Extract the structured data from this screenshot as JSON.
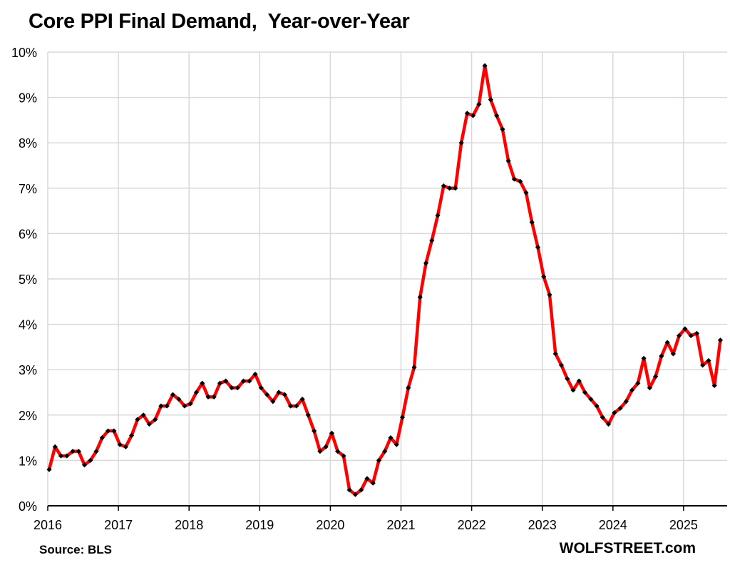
{
  "header": {
    "title": "Core PPI Final Demand,  Year-over-Year"
  },
  "footer": {
    "source": "Source: BLS",
    "brand": "WOLFSTREET.com"
  },
  "colors": {
    "line": "#ff0000",
    "marker": "#000000",
    "grid": "#d9d9d9",
    "axis": "#000000"
  },
  "chart_data": {
    "type": "line",
    "title": "Core PPI Final Demand,  Year-over-Year",
    "xlabel": "",
    "ylabel": "",
    "ylim": [
      0,
      10
    ],
    "y_ticks": [
      "0%",
      "1%",
      "2%",
      "3%",
      "4%",
      "5%",
      "6%",
      "7%",
      "8%",
      "9%",
      "10%"
    ],
    "x_ticks": [
      "2016",
      "2017",
      "2018",
      "2019",
      "2020",
      "2021",
      "2022",
      "2023",
      "2024",
      "2025"
    ],
    "grid": true,
    "legend": "none",
    "frequency": "monthly",
    "start": "2016-01",
    "end": "2025-07",
    "series": [
      {
        "name": "Core PPI Final Demand YoY (%)",
        "values": [
          0.8,
          1.3,
          1.1,
          1.1,
          1.2,
          1.2,
          0.9,
          1.0,
          1.2,
          1.5,
          1.65,
          1.65,
          1.35,
          1.3,
          1.55,
          1.9,
          2.0,
          1.8,
          1.9,
          2.2,
          2.2,
          2.45,
          2.35,
          2.2,
          2.25,
          2.5,
          2.7,
          2.4,
          2.4,
          2.7,
          2.75,
          2.6,
          2.6,
          2.75,
          2.75,
          2.9,
          2.6,
          2.45,
          2.3,
          2.5,
          2.45,
          2.2,
          2.2,
          2.35,
          2.0,
          1.65,
          1.2,
          1.3,
          1.6,
          1.2,
          1.1,
          0.35,
          0.25,
          0.35,
          0.6,
          0.5,
          1.0,
          1.2,
          1.5,
          1.35,
          1.95,
          2.6,
          3.05,
          4.6,
          5.35,
          5.85,
          6.4,
          7.05,
          7.0,
          7.0,
          8.0,
          8.65,
          8.6,
          8.85,
          9.7,
          8.95,
          8.6,
          8.3,
          7.6,
          7.2,
          7.15,
          6.9,
          6.25,
          5.7,
          5.05,
          4.65,
          3.35,
          3.1,
          2.8,
          2.55,
          2.75,
          2.5,
          2.35,
          2.2,
          1.95,
          1.8,
          2.05,
          2.15,
          2.3,
          2.55,
          2.7,
          3.25,
          2.6,
          2.85,
          3.3,
          3.6,
          3.35,
          3.75,
          3.9,
          3.75,
          3.8,
          3.1,
          3.2,
          2.65,
          3.65
        ]
      }
    ]
  }
}
